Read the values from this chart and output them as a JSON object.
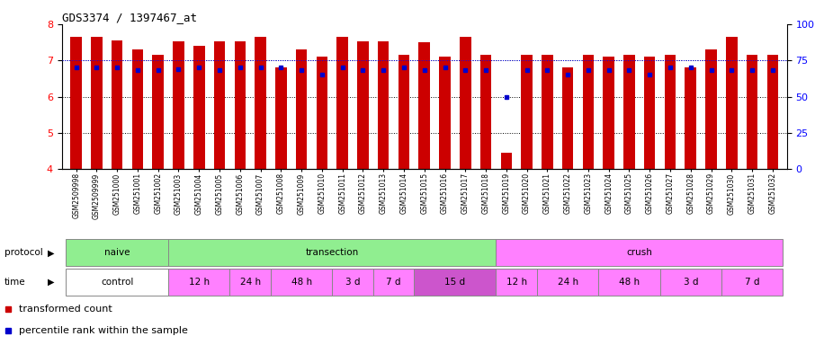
{
  "title": "GDS3374 / 1397467_at",
  "samples": [
    "GSM2509998",
    "GSM2509999",
    "GSM251000",
    "GSM251001",
    "GSM251002",
    "GSM251003",
    "GSM251004",
    "GSM251005",
    "GSM251006",
    "GSM251007",
    "GSM251008",
    "GSM251009",
    "GSM251010",
    "GSM251011",
    "GSM251012",
    "GSM251013",
    "GSM251014",
    "GSM251015",
    "GSM251016",
    "GSM251017",
    "GSM251018",
    "GSM251019",
    "GSM251020",
    "GSM251021",
    "GSM251022",
    "GSM251023",
    "GSM251024",
    "GSM251025",
    "GSM251026",
    "GSM251027",
    "GSM251028",
    "GSM251029",
    "GSM251030",
    "GSM251031",
    "GSM251032"
  ],
  "bar_heights": [
    7.65,
    7.65,
    7.55,
    7.3,
    7.15,
    7.52,
    7.4,
    7.52,
    7.52,
    7.65,
    6.8,
    7.3,
    7.1,
    7.65,
    7.52,
    7.52,
    7.15,
    7.5,
    7.1,
    7.65,
    7.15,
    4.45,
    7.15,
    7.15,
    6.8,
    7.15,
    7.1,
    7.15,
    7.1,
    7.15,
    6.8,
    7.3,
    7.65,
    7.15,
    7.15
  ],
  "percentile_values": [
    70,
    70,
    70,
    68,
    68,
    69,
    70,
    68,
    70,
    70,
    70,
    68,
    65,
    70,
    68,
    68,
    70,
    68,
    70,
    68,
    68,
    50,
    68,
    68,
    65,
    68,
    68,
    68,
    65,
    70,
    70,
    68,
    68,
    68,
    68
  ],
  "y_min": 4,
  "y_max": 8,
  "bar_color": "#CC0000",
  "dot_color": "#0000CC",
  "bg_color": "#FFFFFF",
  "protocol_groups": [
    {
      "label": "naive",
      "start": 0,
      "end": 4,
      "color": "#90EE90"
    },
    {
      "label": "transection",
      "start": 5,
      "end": 20,
      "color": "#90EE90"
    },
    {
      "label": "crush",
      "start": 21,
      "end": 34,
      "color": "#FF80FF"
    }
  ],
  "time_groups": [
    {
      "label": "control",
      "start": 0,
      "end": 4,
      "color": "#FFFFFF"
    },
    {
      "label": "12 h",
      "start": 5,
      "end": 7,
      "color": "#FF80FF"
    },
    {
      "label": "24 h",
      "start": 8,
      "end": 9,
      "color": "#FF80FF"
    },
    {
      "label": "48 h",
      "start": 10,
      "end": 12,
      "color": "#FF80FF"
    },
    {
      "label": "3 d",
      "start": 13,
      "end": 14,
      "color": "#FF80FF"
    },
    {
      "label": "7 d",
      "start": 15,
      "end": 16,
      "color": "#FF80FF"
    },
    {
      "label": "15 d",
      "start": 17,
      "end": 20,
      "color": "#CC55CC"
    },
    {
      "label": "12 h",
      "start": 21,
      "end": 22,
      "color": "#FF80FF"
    },
    {
      "label": "24 h",
      "start": 23,
      "end": 25,
      "color": "#FF80FF"
    },
    {
      "label": "48 h",
      "start": 26,
      "end": 28,
      "color": "#FF80FF"
    },
    {
      "label": "3 d",
      "start": 29,
      "end": 31,
      "color": "#FF80FF"
    },
    {
      "label": "7 d",
      "start": 32,
      "end": 34,
      "color": "#FF80FF"
    }
  ],
  "left_yticks": [
    4,
    5,
    6,
    7,
    8
  ],
  "right_yticks": [
    0,
    25,
    50,
    75,
    100
  ]
}
